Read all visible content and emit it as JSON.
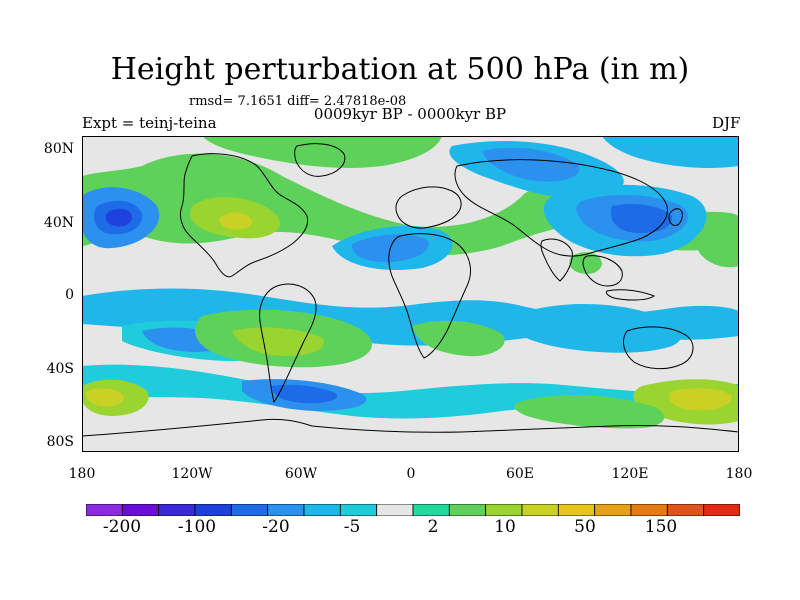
{
  "title": "Height perturbation at 500 hPa (in m)",
  "stats_text": "rmsd= 7.1651 diff= 2.47818e-08",
  "subtitle": "0009kyr BP - 0000kyr BP",
  "left_label": "Expt = teinj-teina",
  "right_label": "DJF",
  "lat_labels": [
    "80N",
    "40N",
    "0",
    "40S",
    "80S"
  ],
  "lon_labels": [
    "180",
    "120W",
    "60W",
    "0",
    "60E",
    "120E",
    "180"
  ],
  "colorbar": {
    "colors": [
      "#8a2be2",
      "#6a0dd6",
      "#3a2ad8",
      "#1e40dc",
      "#1e6be8",
      "#2c90ee",
      "#1fb6ea",
      "#20ccdc",
      "#e6e6e6",
      "#24d99a",
      "#5ed15a",
      "#9ad431",
      "#c9d224",
      "#e6c41c",
      "#e8a018",
      "#e67a14",
      "#e0531a",
      "#e02a14"
    ],
    "labels": [
      "-200",
      "-100",
      "-20",
      "-5",
      "2",
      "10",
      "50",
      "150"
    ]
  },
  "map": {
    "background_color": "#e6e6e6",
    "coast_color": "#000000"
  }
}
